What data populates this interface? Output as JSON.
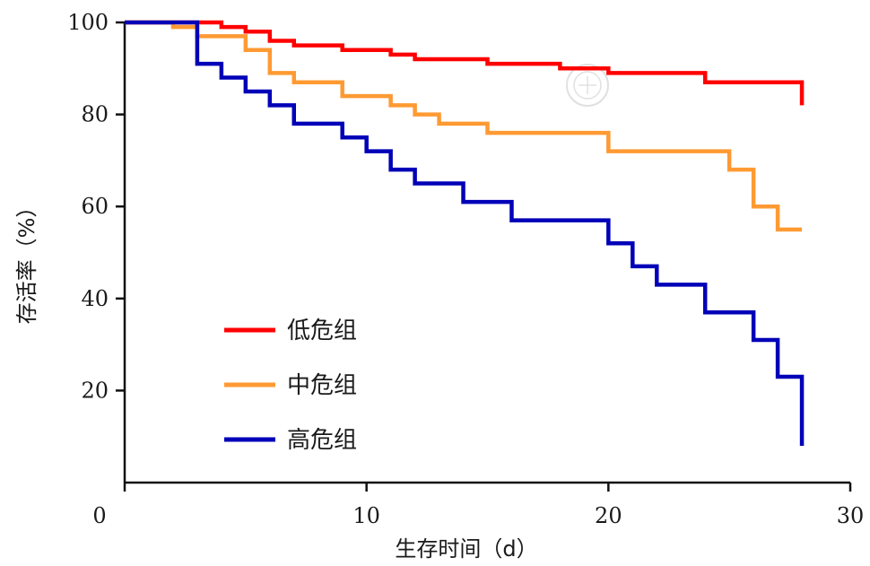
{
  "chart_data": {
    "type": "line",
    "subtype": "kaplan-meier-step",
    "xlabel": "生存时间（d）",
    "ylabel": "存活率（%）",
    "xlim": [
      0,
      30
    ],
    "ylim": [
      0,
      100
    ],
    "xticks": [
      0,
      10,
      20,
      30
    ],
    "xtick_labels": [
      "0",
      "10",
      "20",
      "30"
    ],
    "yticks": [
      20,
      40,
      60,
      80,
      100
    ],
    "ytick_labels": [
      "20",
      "40",
      "60",
      "80",
      "100"
    ],
    "grid": false,
    "legend_position": "lower-left",
    "series": [
      {
        "name": "低危组",
        "color": "#ff0000",
        "x": [
          0,
          4,
          5,
          6,
          7,
          9,
          11,
          12,
          15,
          18,
          20,
          24,
          28,
          28
        ],
        "y": [
          100,
          99,
          98,
          96,
          95,
          94,
          93,
          92,
          91,
          90,
          89,
          87,
          85,
          82
        ]
      },
      {
        "name": "中危组",
        "color": "#ff9a33",
        "x": [
          0,
          2,
          3,
          5,
          6,
          7,
          9,
          11,
          12,
          13,
          15,
          20,
          25,
          26,
          27,
          28
        ],
        "y": [
          100,
          99,
          97,
          94,
          89,
          87,
          84,
          82,
          80,
          78,
          76,
          72,
          68,
          60,
          55,
          55
        ]
      },
      {
        "name": "高危组",
        "color": "#0000b8",
        "x": [
          0,
          3,
          4,
          5,
          6,
          7,
          9,
          10,
          11,
          12,
          14,
          16,
          20,
          21,
          22,
          24,
          26,
          27,
          28
        ],
        "y": [
          100,
          91,
          88,
          85,
          82,
          78,
          75,
          72,
          68,
          65,
          61,
          57,
          52,
          47,
          43,
          37,
          31,
          23,
          8
        ]
      }
    ]
  }
}
